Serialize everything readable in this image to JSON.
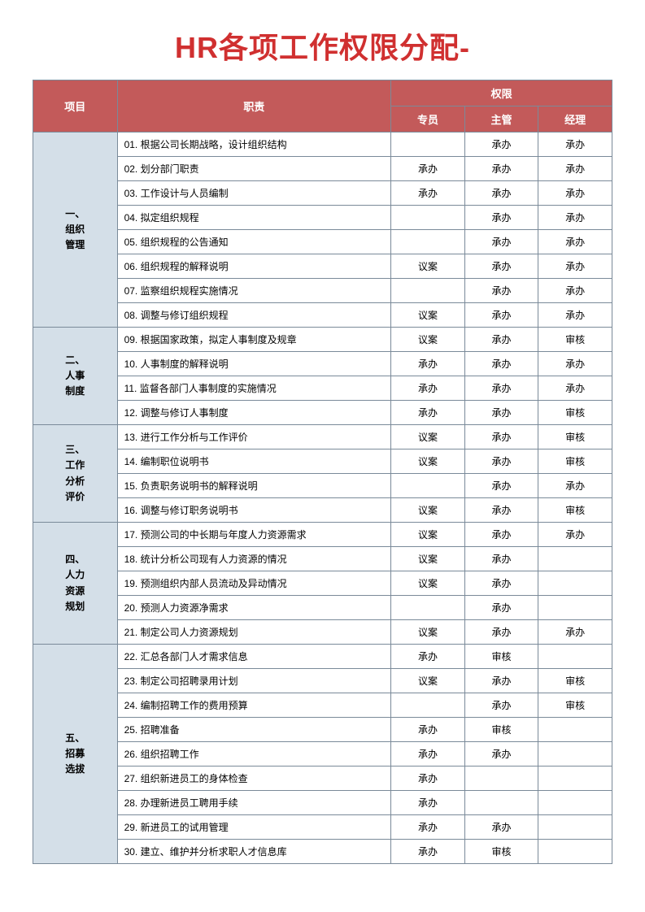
{
  "title": "HR各项工作权限分配-",
  "headers": {
    "category": "项目",
    "duty": "职责",
    "permission_group": "权限",
    "perm_cols": [
      "专员",
      "主管",
      "经理"
    ]
  },
  "colors": {
    "title": "#d03030",
    "header_bg": "#c35a5a",
    "header_text": "#ffffff",
    "category_bg": "#d4dfe8",
    "border": "#7a8a99",
    "cell_bg": "#ffffff"
  },
  "sections": [
    {
      "id": "s1",
      "label": "一、\n组织\n管理",
      "rows": [
        {
          "duty": "01. 根据公司长期战略，设计组织结构",
          "perms": [
            "",
            "承办",
            "承办"
          ]
        },
        {
          "duty": "02. 划分部门职责",
          "perms": [
            "承办",
            "承办",
            "承办"
          ]
        },
        {
          "duty": "03. 工作设计与人员编制",
          "perms": [
            "承办",
            "承办",
            "承办"
          ]
        },
        {
          "duty": "04. 拟定组织规程",
          "perms": [
            "",
            "承办",
            "承办"
          ]
        },
        {
          "duty": "05. 组织规程的公告通知",
          "perms": [
            "",
            "承办",
            "承办"
          ]
        },
        {
          "duty": "06. 组织规程的解释说明",
          "perms": [
            "议案",
            "承办",
            "承办"
          ]
        },
        {
          "duty": "07. 监察组织规程实施情况",
          "perms": [
            "",
            "承办",
            "承办"
          ]
        },
        {
          "duty": "08. 调整与修订组织规程",
          "perms": [
            "议案",
            "承办",
            "承办"
          ]
        }
      ]
    },
    {
      "id": "s2",
      "label": "二、\n人事\n制度",
      "rows": [
        {
          "duty": "09. 根据国家政策，拟定人事制度及规章",
          "perms": [
            "议案",
            "承办",
            "审核"
          ]
        },
        {
          "duty": "10. 人事制度的解释说明",
          "perms": [
            "承办",
            "承办",
            "承办"
          ]
        },
        {
          "duty": "11. 监督各部门人事制度的实施情况",
          "perms": [
            "承办",
            "承办",
            "承办"
          ]
        },
        {
          "duty": "12. 调整与修订人事制度",
          "perms": [
            "承办",
            "承办",
            "审核"
          ]
        }
      ]
    },
    {
      "id": "s3",
      "label": "三、\n工作\n分析\n评价",
      "rows": [
        {
          "duty": "13. 进行工作分析与工作评价",
          "perms": [
            "议案",
            "承办",
            "审核"
          ]
        },
        {
          "duty": "14. 编制职位说明书",
          "perms": [
            "议案",
            "承办",
            "审核"
          ]
        },
        {
          "duty": "15. 负责职务说明书的解释说明",
          "perms": [
            "",
            "承办",
            "承办"
          ]
        },
        {
          "duty": "16. 调整与修订职务说明书",
          "perms": [
            "议案",
            "承办",
            "审核"
          ]
        }
      ]
    },
    {
      "id": "s4",
      "label": "四、\n人力\n资源\n规划",
      "rows": [
        {
          "duty": "17. 预测公司的中长期与年度人力资源需求",
          "perms": [
            "议案",
            "承办",
            "承办"
          ]
        },
        {
          "duty": "18. 统计分析公司现有人力资源的情况",
          "perms": [
            "议案",
            "承办",
            ""
          ]
        },
        {
          "duty": "19. 预测组织内部人员流动及异动情况",
          "perms": [
            "议案",
            "承办",
            ""
          ]
        },
        {
          "duty": "20. 预测人力资源净需求",
          "perms": [
            "",
            "承办",
            ""
          ]
        },
        {
          "duty": "21. 制定公司人力资源规划",
          "perms": [
            "议案",
            "承办",
            "承办"
          ]
        }
      ]
    },
    {
      "id": "s5",
      "label": "五、\n招募\n选拔",
      "rows": [
        {
          "duty": "22. 汇总各部门人才需求信息",
          "perms": [
            "承办",
            "审核",
            ""
          ]
        },
        {
          "duty": "23. 制定公司招聘录用计划",
          "perms": [
            "议案",
            "承办",
            "审核"
          ]
        },
        {
          "duty": "24. 编制招聘工作的费用预算",
          "perms": [
            "",
            "承办",
            "审核"
          ]
        },
        {
          "duty": "25. 招聘准备",
          "perms": [
            "承办",
            "审核",
            ""
          ]
        },
        {
          "duty": "26. 组织招聘工作",
          "perms": [
            "承办",
            "承办",
            ""
          ]
        },
        {
          "duty": "27. 组织新进员工的身体检查",
          "perms": [
            "承办",
            "",
            ""
          ]
        },
        {
          "duty": "28. 办理新进员工聘用手续",
          "perms": [
            "承办",
            "",
            ""
          ]
        },
        {
          "duty": "29. 新进员工的试用管理",
          "perms": [
            "承办",
            "承办",
            ""
          ]
        },
        {
          "duty": "30. 建立、维护并分析求职人才信息库",
          "perms": [
            "承办",
            "审核",
            ""
          ]
        }
      ]
    }
  ]
}
